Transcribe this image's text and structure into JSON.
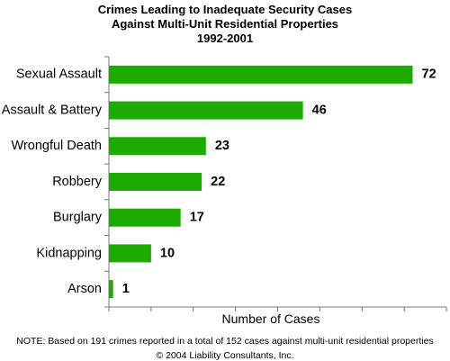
{
  "chart_data": {
    "type": "bar",
    "orientation": "horizontal",
    "title": [
      "Crimes Leading to Inadequate Security Cases",
      "Against Multi-Unit Residential Properties",
      "1992-2001"
    ],
    "categories": [
      "Sexual Assault",
      "Assault & Battery",
      "Wrongful Death",
      "Robbery",
      "Burglary",
      "Kidnapping",
      "Arson"
    ],
    "values": [
      72,
      46,
      23,
      22,
      17,
      10,
      1
    ],
    "xlabel": "Number of Cases",
    "ylabel": "",
    "xlim": [
      0,
      80
    ],
    "grid": false,
    "bar_color": "#1faa00"
  },
  "footer": {
    "note": "NOTE: Based on 191 crimes reported in a total of 152 cases against multi-unit residential properties",
    "copyright": "© 2004 Liability Consultants, Inc."
  }
}
